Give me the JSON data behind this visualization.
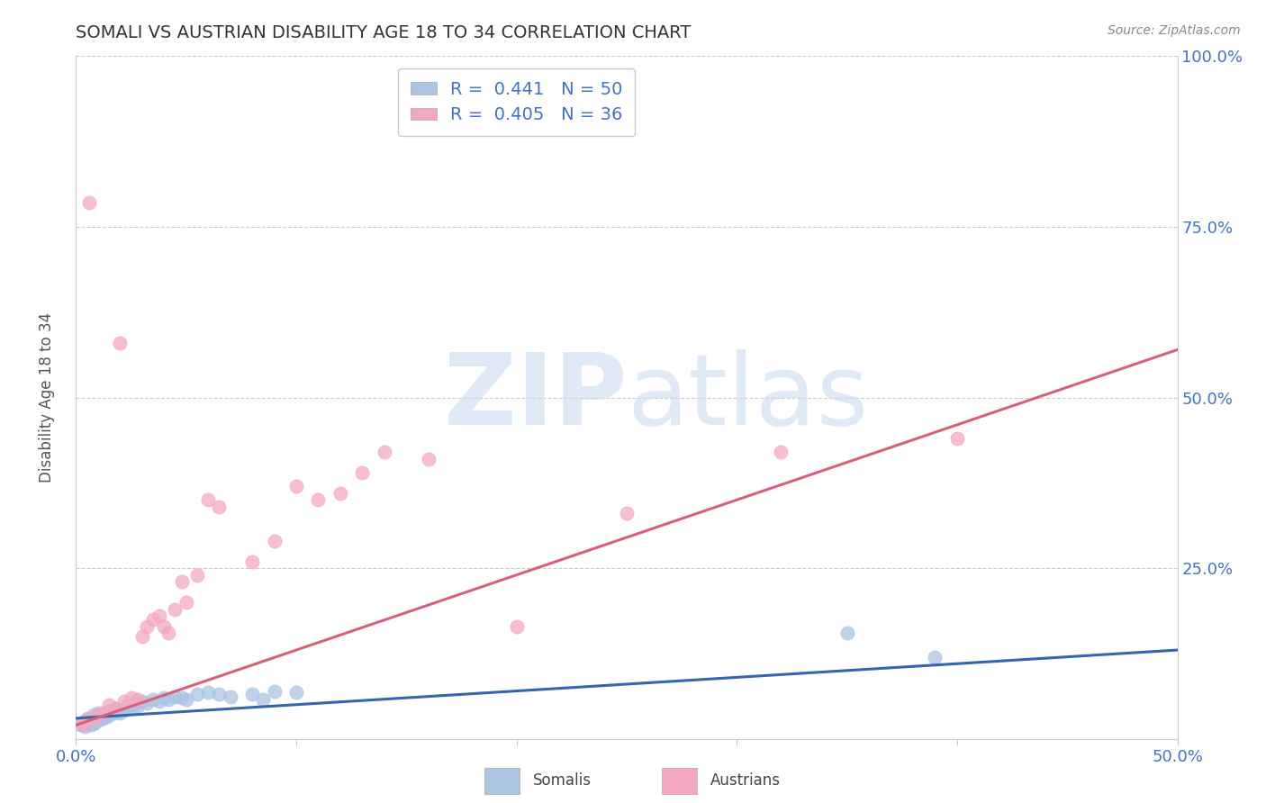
{
  "title": "SOMALI VS AUSTRIAN DISABILITY AGE 18 TO 34 CORRELATION CHART",
  "source_text": "Source: ZipAtlas.com",
  "ylabel": "Disability Age 18 to 34",
  "xlim": [
    0.0,
    0.5
  ],
  "ylim": [
    0.0,
    1.0
  ],
  "somali_R": 0.441,
  "somali_N": 50,
  "austrian_R": 0.405,
  "austrian_N": 36,
  "somali_color": "#aac4e2",
  "austrian_color": "#f4a8c0",
  "somali_line_color": "#3465b0",
  "austrian_line_color": "#d9607a",
  "legend_R_color": "#4472c4",
  "legend_N_color": "#e05070",
  "watermark_zip": "ZIP",
  "watermark_atlas": "atlas",
  "watermark_color_zip": "#c8d8f0",
  "watermark_color_atlas": "#c8d8f0",
  "title_fontsize": 14,
  "somali_x": [
    0.002,
    0.003,
    0.004,
    0.005,
    0.005,
    0.006,
    0.007,
    0.007,
    0.008,
    0.008,
    0.009,
    0.009,
    0.01,
    0.01,
    0.011,
    0.012,
    0.012,
    0.013,
    0.014,
    0.015,
    0.015,
    0.016,
    0.017,
    0.018,
    0.019,
    0.02,
    0.022,
    0.023,
    0.025,
    0.026,
    0.028,
    0.03,
    0.032,
    0.035,
    0.038,
    0.04,
    0.042,
    0.045,
    0.048,
    0.05,
    0.055,
    0.06,
    0.065,
    0.07,
    0.08,
    0.085,
    0.09,
    0.1,
    0.35,
    0.39
  ],
  "somali_y": [
    0.02,
    0.025,
    0.018,
    0.022,
    0.03,
    0.025,
    0.02,
    0.028,
    0.022,
    0.035,
    0.03,
    0.025,
    0.032,
    0.038,
    0.028,
    0.035,
    0.03,
    0.038,
    0.032,
    0.04,
    0.035,
    0.042,
    0.038,
    0.045,
    0.04,
    0.038,
    0.042,
    0.048,
    0.045,
    0.05,
    0.048,
    0.055,
    0.052,
    0.058,
    0.055,
    0.06,
    0.058,
    0.062,
    0.06,
    0.058,
    0.065,
    0.068,
    0.065,
    0.062,
    0.065,
    0.058,
    0.07,
    0.068,
    0.155,
    0.12
  ],
  "austrian_x": [
    0.003,
    0.005,
    0.006,
    0.008,
    0.01,
    0.012,
    0.015,
    0.018,
    0.02,
    0.022,
    0.025,
    0.028,
    0.03,
    0.032,
    0.035,
    0.038,
    0.04,
    0.042,
    0.045,
    0.048,
    0.05,
    0.055,
    0.06,
    0.065,
    0.08,
    0.09,
    0.1,
    0.11,
    0.12,
    0.13,
    0.14,
    0.16,
    0.2,
    0.25,
    0.32,
    0.4
  ],
  "austrian_y": [
    0.02,
    0.028,
    0.785,
    0.03,
    0.035,
    0.038,
    0.05,
    0.045,
    0.58,
    0.055,
    0.06,
    0.058,
    0.15,
    0.165,
    0.175,
    0.18,
    0.165,
    0.155,
    0.19,
    0.23,
    0.2,
    0.24,
    0.35,
    0.34,
    0.26,
    0.29,
    0.37,
    0.35,
    0.36,
    0.39,
    0.42,
    0.41,
    0.165,
    0.33,
    0.42,
    0.44
  ],
  "somali_trend_x": [
    0.0,
    0.5
  ],
  "somali_trend_y": [
    0.03,
    0.13
  ],
  "austrian_trend_x": [
    0.0,
    0.5
  ],
  "austrian_trend_y": [
    0.02,
    0.57
  ]
}
